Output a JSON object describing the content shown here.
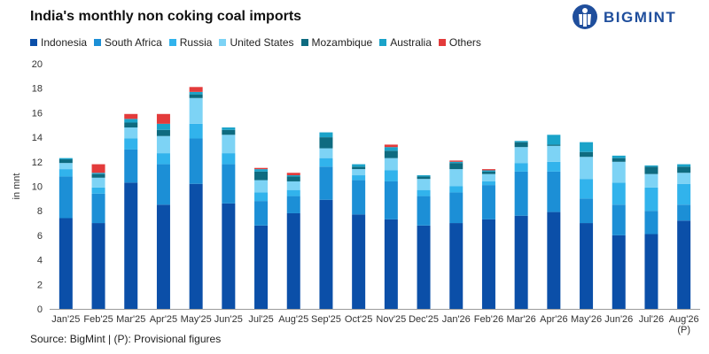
{
  "title": "India's monthly non coking coal imports",
  "logo": {
    "text": "BIGMINT",
    "icon": "bigmint-logo-icon",
    "color": "#1f4e9c"
  },
  "source": "Source: BigMint | (P): Provisional figures",
  "chart_data": {
    "type": "bar",
    "stacked": true,
    "title": "India's monthly non coking coal imports",
    "xlabel": "",
    "ylabel": "in mnt",
    "ylim": [
      0,
      20
    ],
    "yticks": [
      0,
      2,
      4,
      6,
      8,
      10,
      12,
      14,
      16,
      18,
      20
    ],
    "grid": false,
    "legend_position": "top",
    "categories": [
      "Jan'25",
      "Feb'25",
      "Mar'25",
      "Apr'25",
      "May'25",
      "Jun'25",
      "Jul'25",
      "Aug'25",
      "Sep'25",
      "Oct'25",
      "Nov'25",
      "Dec'25",
      "Jan'26",
      "Feb'26",
      "Mar'26",
      "Apr'26",
      "May'26",
      "Jun'26",
      "Jul'26",
      "Aug'26"
    ],
    "category_notes": [
      "",
      "",
      "",
      "",
      "",
      "",
      "",
      "",
      "",
      "",
      "",
      "",
      "",
      "",
      "",
      "",
      "",
      "",
      "",
      "(P)"
    ],
    "series": [
      {
        "name": "Indonesia",
        "color": "#0b4fa8",
        "values": [
          7.4,
          7.0,
          10.3,
          8.5,
          10.2,
          8.6,
          6.8,
          7.8,
          8.9,
          7.7,
          7.3,
          6.8,
          7.0,
          7.3,
          7.6,
          7.9,
          7.0,
          6.0,
          6.1,
          7.2
        ]
      },
      {
        "name": "South Africa",
        "color": "#1c8fd6",
        "values": [
          3.4,
          2.4,
          2.7,
          3.3,
          3.7,
          3.2,
          2.0,
          1.4,
          2.7,
          2.8,
          3.1,
          2.4,
          2.5,
          2.8,
          3.6,
          3.3,
          2.0,
          2.5,
          1.9,
          1.3
        ]
      },
      {
        "name": "Russia",
        "color": "#31b3ec",
        "values": [
          0.6,
          0.5,
          0.9,
          0.9,
          1.2,
          0.9,
          0.7,
          0.5,
          0.7,
          0.4,
          0.9,
          0.5,
          0.5,
          0.3,
          0.7,
          0.8,
          1.6,
          1.8,
          1.9,
          1.7
        ]
      },
      {
        "name": "United States",
        "color": "#7dd3f5",
        "values": [
          0.5,
          0.8,
          0.9,
          1.4,
          2.1,
          1.5,
          1.0,
          0.7,
          0.8,
          0.5,
          1.0,
          0.9,
          1.4,
          0.6,
          1.3,
          1.3,
          1.8,
          1.7,
          1.1,
          0.9
        ]
      },
      {
        "name": "Mozambique",
        "color": "#0e6b80",
        "values": [
          0.3,
          0.3,
          0.4,
          0.5,
          0.3,
          0.4,
          0.7,
          0.4,
          0.9,
          0.2,
          0.6,
          0.2,
          0.5,
          0.2,
          0.4,
          0.1,
          0.4,
          0.3,
          0.6,
          0.5
        ]
      },
      {
        "name": "Australia",
        "color": "#1aa3c9",
        "values": [
          0.1,
          0.1,
          0.3,
          0.5,
          0.2,
          0.2,
          0.2,
          0.1,
          0.4,
          0.2,
          0.3,
          0.1,
          0.1,
          0.1,
          0.1,
          0.8,
          0.8,
          0.2,
          0.1,
          0.2
        ]
      },
      {
        "name": "Others",
        "color": "#e33b3b",
        "values": [
          0.0,
          0.7,
          0.4,
          0.8,
          0.4,
          0.0,
          0.1,
          0.2,
          0.0,
          0.0,
          0.2,
          0.0,
          0.1,
          0.1,
          0.0,
          0.0,
          0.0,
          0.0,
          0.0,
          0.0
        ]
      }
    ]
  }
}
